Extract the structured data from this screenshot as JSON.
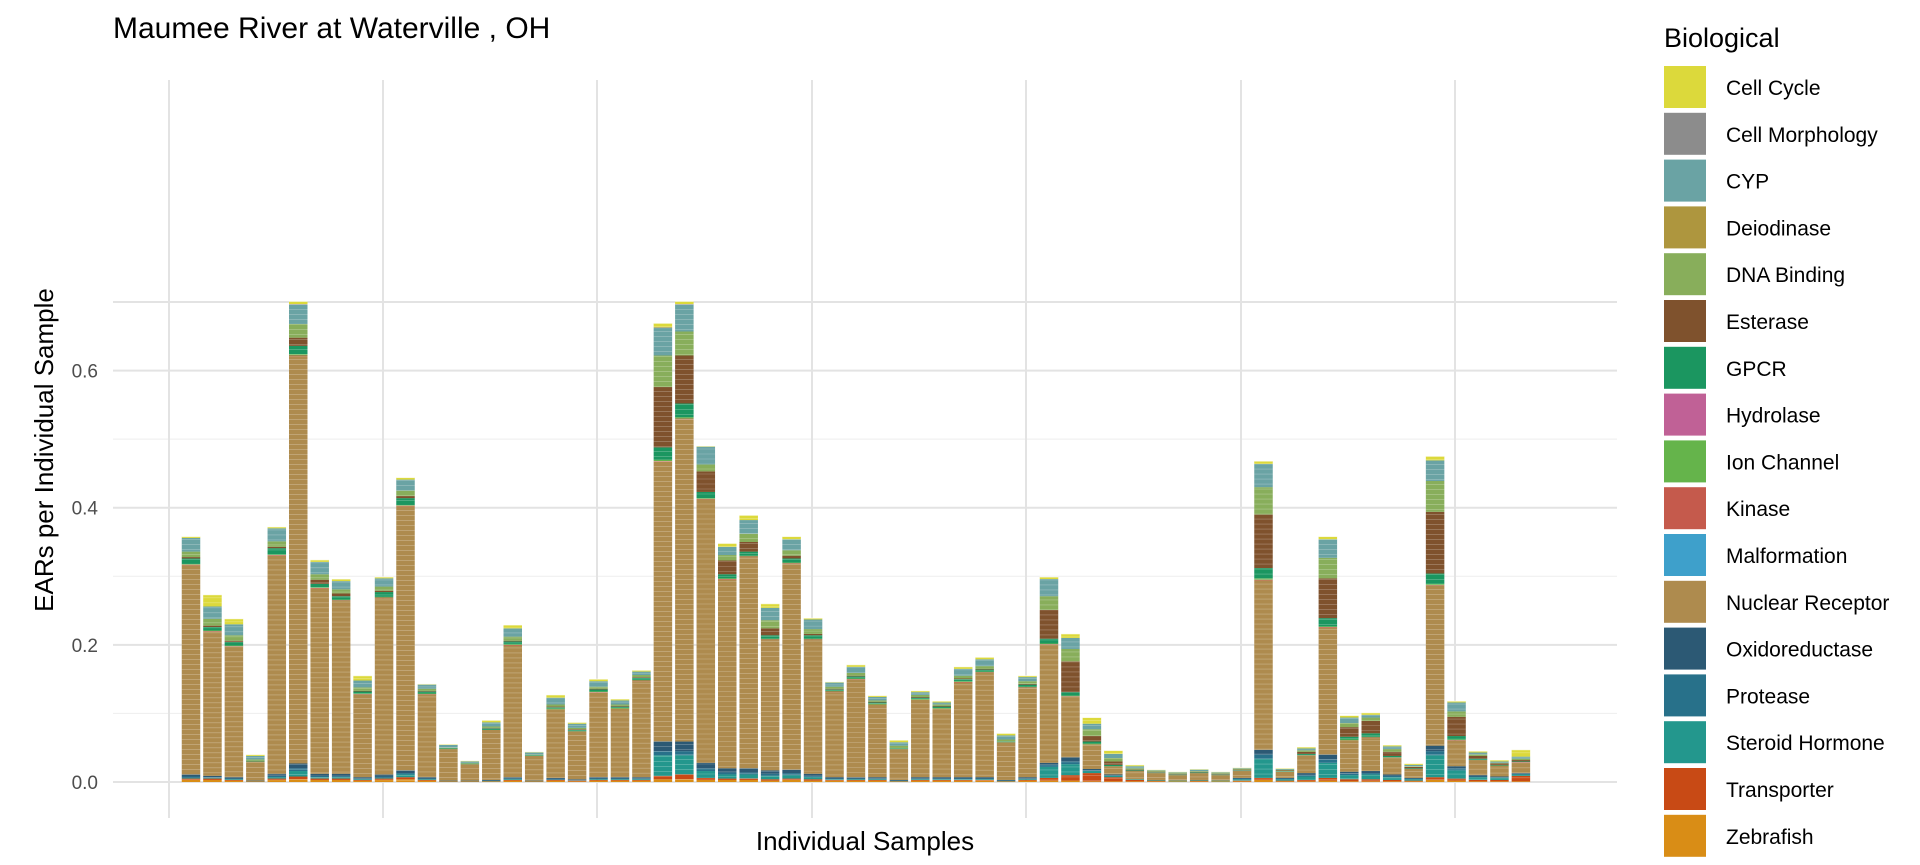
{
  "chart_data": {
    "type": "bar",
    "stacked": true,
    "title": "Maumee River at Waterville , OH",
    "xlabel": "Individual Samples",
    "ylabel": "EARs per Individual Sample",
    "ylim": [
      0,
      0.7
    ],
    "yticks": [
      "0.0",
      "0.2",
      "0.4",
      "0.6"
    ],
    "grid": true,
    "legend": {
      "title": "Biological",
      "position": "right",
      "entries": [
        {
          "name": "Cell Cycle",
          "color": "#dcd93b"
        },
        {
          "name": "Cell Morphology",
          "color": "#8c8c8c"
        },
        {
          "name": "CYP",
          "color": "#6aa3a4"
        },
        {
          "name": "Deiodinase",
          "color": "#ae963e"
        },
        {
          "name": "DNA Binding",
          "color": "#88ae5b"
        },
        {
          "name": "Esterase",
          "color": "#7f522d"
        },
        {
          "name": "GPCR",
          "color": "#1b9660"
        },
        {
          "name": "Hydrolase",
          "color": "#c06196"
        },
        {
          "name": "Ion Channel",
          "color": "#65b44b"
        },
        {
          "name": "Kinase",
          "color": "#c55a4c"
        },
        {
          "name": "Malformation",
          "color": "#3ea0cb"
        },
        {
          "name": "Nuclear Receptor",
          "color": "#ae8b4e"
        },
        {
          "name": "Oxidoreductase",
          "color": "#2c5974"
        },
        {
          "name": "Protease",
          "color": "#28718a"
        },
        {
          "name": "Steroid Hormone",
          "color": "#23978d"
        },
        {
          "name": "Transporter",
          "color": "#c84a15"
        },
        {
          "name": "Zebrafish",
          "color": "#d98d16"
        }
      ]
    },
    "totals": [
      0.355,
      0.262,
      0.237,
      0.041,
      0.37,
      0.7,
      0.323,
      0.295,
      0.155,
      0.298,
      0.444,
      0.143,
      0.055,
      0.03,
      0.09,
      0.228,
      0.044,
      0.127,
      0.087,
      0.15,
      0.12,
      0.163,
      0.664,
      0.7,
      0.49,
      0.345,
      0.39,
      0.258,
      0.357,
      0.24,
      0.145,
      0.17,
      0.123,
      0.06,
      0.132,
      0.116,
      0.166,
      0.177,
      0.07,
      0.154,
      0.298,
      0.215,
      0.089,
      0.043,
      0.024,
      0.018,
      0.014,
      0.018,
      0.014,
      0.02,
      0.467,
      0.018,
      0.047,
      0.358,
      0.096,
      0.1,
      0.054,
      0.024,
      0.476,
      0.118,
      0.043,
      0.03,
      0.038
    ],
    "series": [
      {
        "name": "Zebrafish",
        "values": [
          0.003,
          0.003,
          0.002,
          0.001,
          0.003,
          0.004,
          0.003,
          0.003,
          0.002,
          0.003,
          0.004,
          0.002,
          0.001,
          0.001,
          0.001,
          0.002,
          0.001,
          0.002,
          0.001,
          0.002,
          0.002,
          0.002,
          0.004,
          0.004,
          0.003,
          0.003,
          0.003,
          0.002,
          0.003,
          0.002,
          0.002,
          0.002,
          0.002,
          0.001,
          0.002,
          0.002,
          0.002,
          0.002,
          0.001,
          0.002,
          0.002,
          0.002,
          0.001,
          0.001,
          0.001,
          0.001,
          0.001,
          0.001,
          0.001,
          0.001,
          0.003,
          0.001,
          0.001,
          0.002,
          0.001,
          0.001,
          0.001,
          0.001,
          0.003,
          0.002,
          0.001,
          0.001,
          0.001
        ]
      },
      {
        "name": "Transporter",
        "values": [
          0.002,
          0.002,
          0.001,
          0.0,
          0.002,
          0.004,
          0.002,
          0.002,
          0.001,
          0.002,
          0.003,
          0.001,
          0.0,
          0.0,
          0.0,
          0.001,
          0.0,
          0.001,
          0.001,
          0.001,
          0.001,
          0.001,
          0.005,
          0.007,
          0.003,
          0.002,
          0.002,
          0.002,
          0.002,
          0.002,
          0.001,
          0.001,
          0.001,
          0.0,
          0.001,
          0.001,
          0.001,
          0.001,
          0.0,
          0.001,
          0.004,
          0.008,
          0.012,
          0.006,
          0.002,
          0.001,
          0.0,
          0.001,
          0.0,
          0.001,
          0.003,
          0.001,
          0.002,
          0.004,
          0.003,
          0.003,
          0.002,
          0.001,
          0.004,
          0.003,
          0.002,
          0.002,
          0.008
        ]
      },
      {
        "name": "Steroid Hormone",
        "values": [
          0.001,
          0.001,
          0.001,
          0.0,
          0.002,
          0.008,
          0.002,
          0.002,
          0.001,
          0.001,
          0.004,
          0.001,
          0.0,
          0.0,
          0.0,
          0.001,
          0.0,
          0.0,
          0.0,
          0.001,
          0.001,
          0.001,
          0.03,
          0.028,
          0.01,
          0.006,
          0.006,
          0.005,
          0.005,
          0.003,
          0.001,
          0.001,
          0.001,
          0.0,
          0.001,
          0.001,
          0.001,
          0.001,
          0.0,
          0.001,
          0.016,
          0.016,
          0.003,
          0.002,
          0.001,
          0.001,
          0.001,
          0.001,
          0.001,
          0.002,
          0.028,
          0.002,
          0.005,
          0.022,
          0.006,
          0.007,
          0.004,
          0.002,
          0.032,
          0.012,
          0.004,
          0.003,
          0.002
        ]
      },
      {
        "name": "Protease",
        "values": [
          0.002,
          0.001,
          0.001,
          0.0,
          0.002,
          0.004,
          0.002,
          0.002,
          0.001,
          0.002,
          0.002,
          0.001,
          0.0,
          0.0,
          0.001,
          0.001,
          0.0,
          0.001,
          0.001,
          0.001,
          0.001,
          0.001,
          0.006,
          0.006,
          0.004,
          0.003,
          0.003,
          0.003,
          0.003,
          0.002,
          0.001,
          0.001,
          0.001,
          0.001,
          0.001,
          0.001,
          0.001,
          0.001,
          0.001,
          0.001,
          0.003,
          0.004,
          0.001,
          0.001,
          0.0,
          0.0,
          0.0,
          0.0,
          0.0,
          0.001,
          0.006,
          0.001,
          0.002,
          0.005,
          0.002,
          0.002,
          0.002,
          0.001,
          0.006,
          0.003,
          0.001,
          0.001,
          0.001
        ]
      },
      {
        "name": "Oxidoreductase",
        "values": [
          0.003,
          0.002,
          0.002,
          0.001,
          0.003,
          0.007,
          0.003,
          0.003,
          0.002,
          0.003,
          0.004,
          0.002,
          0.001,
          0.001,
          0.001,
          0.002,
          0.001,
          0.002,
          0.001,
          0.002,
          0.002,
          0.002,
          0.014,
          0.014,
          0.008,
          0.006,
          0.006,
          0.005,
          0.005,
          0.003,
          0.002,
          0.002,
          0.002,
          0.001,
          0.002,
          0.002,
          0.002,
          0.002,
          0.001,
          0.002,
          0.003,
          0.006,
          0.002,
          0.001,
          0.0,
          0.0,
          0.0,
          0.0,
          0.0,
          0.001,
          0.007,
          0.001,
          0.003,
          0.007,
          0.003,
          0.003,
          0.002,
          0.001,
          0.008,
          0.003,
          0.002,
          0.001,
          0.001
        ]
      },
      {
        "name": "Nuclear Receptor",
        "values": [
          0.305,
          0.21,
          0.19,
          0.028,
          0.318,
          0.594,
          0.27,
          0.252,
          0.12,
          0.257,
          0.385,
          0.12,
          0.046,
          0.024,
          0.073,
          0.192,
          0.036,
          0.1,
          0.07,
          0.123,
          0.1,
          0.14,
          0.408,
          0.47,
          0.384,
          0.275,
          0.308,
          0.19,
          0.3,
          0.195,
          0.124,
          0.142,
          0.106,
          0.045,
          0.113,
          0.1,
          0.138,
          0.152,
          0.055,
          0.13,
          0.172,
          0.088,
          0.036,
          0.012,
          0.012,
          0.01,
          0.008,
          0.01,
          0.008,
          0.01,
          0.247,
          0.009,
          0.026,
          0.185,
          0.046,
          0.048,
          0.025,
          0.013,
          0.233,
          0.037,
          0.022,
          0.016,
          0.015
        ]
      },
      {
        "name": "Kinase",
        "values": [
          0.001,
          0.001,
          0.001,
          0.0,
          0.001,
          0.001,
          0.001,
          0.001,
          0.001,
          0.001,
          0.001,
          0.001,
          0.0,
          0.0,
          0.0,
          0.001,
          0.0,
          0.0,
          0.0,
          0.001,
          0.0,
          0.001,
          0.001,
          0.001,
          0.001,
          0.001,
          0.001,
          0.001,
          0.001,
          0.001,
          0.001,
          0.001,
          0.0,
          0.0,
          0.0,
          0.0,
          0.001,
          0.001,
          0.0,
          0.001,
          0.001,
          0.001,
          0.0,
          0.0,
          0.0,
          0.0,
          0.0,
          0.0,
          0.0,
          0.0,
          0.001,
          0.0,
          0.0,
          0.001,
          0.0,
          0.001,
          0.0,
          0.0,
          0.001,
          0.001,
          0.0,
          0.0,
          0.001
        ]
      },
      {
        "name": "Ion Channel",
        "values": [
          0.001,
          0.001,
          0.001,
          0.0,
          0.001,
          0.002,
          0.001,
          0.001,
          0.001,
          0.001,
          0.001,
          0.001,
          0.0,
          0.0,
          0.0,
          0.001,
          0.0,
          0.001,
          0.0,
          0.001,
          0.001,
          0.001,
          0.002,
          0.002,
          0.001,
          0.001,
          0.001,
          0.001,
          0.001,
          0.001,
          0.001,
          0.001,
          0.001,
          0.0,
          0.001,
          0.001,
          0.001,
          0.001,
          0.0,
          0.001,
          0.001,
          0.001,
          0.001,
          0.0,
          0.0,
          0.0,
          0.0,
          0.0,
          0.0,
          0.0,
          0.002,
          0.0,
          0.0,
          0.001,
          0.001,
          0.001,
          0.0,
          0.0,
          0.002,
          0.001,
          0.0,
          0.0,
          0.0
        ]
      },
      {
        "name": "GPCR",
        "values": [
          0.008,
          0.005,
          0.005,
          0.001,
          0.009,
          0.012,
          0.005,
          0.005,
          0.003,
          0.007,
          0.01,
          0.003,
          0.001,
          0.001,
          0.002,
          0.004,
          0.001,
          0.002,
          0.002,
          0.003,
          0.002,
          0.003,
          0.018,
          0.02,
          0.009,
          0.006,
          0.006,
          0.005,
          0.006,
          0.005,
          0.002,
          0.003,
          0.002,
          0.001,
          0.002,
          0.002,
          0.003,
          0.003,
          0.001,
          0.003,
          0.007,
          0.005,
          0.003,
          0.002,
          0.001,
          0.001,
          0.001,
          0.001,
          0.001,
          0.001,
          0.015,
          0.001,
          0.002,
          0.012,
          0.004,
          0.005,
          0.002,
          0.001,
          0.015,
          0.005,
          0.002,
          0.001,
          0.001
        ]
      },
      {
        "name": "Esterase",
        "values": [
          0.002,
          0.002,
          0.002,
          0.0,
          0.002,
          0.012,
          0.006,
          0.004,
          0.001,
          0.002,
          0.003,
          0.001,
          0.0,
          0.0,
          0.001,
          0.001,
          0.0,
          0.001,
          0.001,
          0.001,
          0.001,
          0.001,
          0.088,
          0.07,
          0.03,
          0.02,
          0.014,
          0.01,
          0.004,
          0.002,
          0.001,
          0.001,
          0.001,
          0.0,
          0.001,
          0.001,
          0.001,
          0.001,
          0.0,
          0.001,
          0.042,
          0.045,
          0.008,
          0.005,
          0.001,
          0.001,
          0.001,
          0.001,
          0.001,
          0.001,
          0.078,
          0.001,
          0.003,
          0.058,
          0.014,
          0.018,
          0.006,
          0.002,
          0.09,
          0.028,
          0.004,
          0.002,
          0.002
        ]
      },
      {
        "name": "DNA Binding",
        "values": [
          0.008,
          0.01,
          0.008,
          0.002,
          0.008,
          0.02,
          0.008,
          0.006,
          0.005,
          0.006,
          0.008,
          0.003,
          0.001,
          0.001,
          0.002,
          0.006,
          0.001,
          0.003,
          0.002,
          0.003,
          0.002,
          0.003,
          0.046,
          0.035,
          0.01,
          0.008,
          0.012,
          0.012,
          0.008,
          0.007,
          0.003,
          0.004,
          0.002,
          0.004,
          0.003,
          0.002,
          0.004,
          0.004,
          0.003,
          0.004,
          0.02,
          0.018,
          0.01,
          0.005,
          0.002,
          0.001,
          0.001,
          0.001,
          0.001,
          0.001,
          0.04,
          0.001,
          0.002,
          0.03,
          0.006,
          0.005,
          0.004,
          0.001,
          0.045,
          0.008,
          0.002,
          0.001,
          0.002
        ]
      },
      {
        "name": "CYP",
        "values": [
          0.02,
          0.018,
          0.016,
          0.005,
          0.019,
          0.028,
          0.018,
          0.012,
          0.01,
          0.012,
          0.016,
          0.006,
          0.004,
          0.002,
          0.006,
          0.012,
          0.003,
          0.01,
          0.006,
          0.008,
          0.006,
          0.005,
          0.04,
          0.039,
          0.026,
          0.012,
          0.02,
          0.018,
          0.016,
          0.014,
          0.006,
          0.009,
          0.005,
          0.005,
          0.004,
          0.003,
          0.01,
          0.01,
          0.006,
          0.006,
          0.025,
          0.016,
          0.008,
          0.006,
          0.003,
          0.001,
          0.001,
          0.002,
          0.001,
          0.001,
          0.034,
          0.001,
          0.003,
          0.027,
          0.008,
          0.004,
          0.004,
          0.002,
          0.03,
          0.013,
          0.003,
          0.002,
          0.003
        ]
      },
      {
        "name": "Cell Morphology",
        "values": [
          0.0,
          0.0,
          0.0,
          0.0,
          0.0,
          0.001,
          0.0,
          0.0,
          0.0,
          0.0,
          0.0,
          0.0,
          0.0,
          0.0,
          0.0,
          0.0,
          0.0,
          0.0,
          0.0,
          0.0,
          0.0,
          0.0,
          0.001,
          0.001,
          0.0,
          0.0,
          0.0,
          0.0,
          0.0,
          0.0,
          0.0,
          0.0,
          0.0,
          0.0,
          0.0,
          0.0,
          0.0,
          0.0,
          0.0,
          0.0,
          0.0,
          0.0,
          0.0,
          0.0,
          0.0,
          0.0,
          0.0,
          0.0,
          0.0,
          0.0,
          0.0,
          0.0,
          0.0,
          0.0,
          0.0,
          0.0,
          0.0,
          0.0,
          0.0,
          0.0,
          0.0,
          0.0,
          0.0
        ]
      },
      {
        "name": "Cell Cycle",
        "values": [
          0.002,
          0.017,
          0.008,
          0.002,
          0.002,
          0.004,
          0.003,
          0.003,
          0.007,
          0.002,
          0.003,
          0.001,
          0.001,
          0.001,
          0.003,
          0.005,
          0.001,
          0.004,
          0.002,
          0.003,
          0.002,
          0.002,
          0.006,
          0.004,
          0.001,
          0.005,
          0.007,
          0.006,
          0.004,
          0.002,
          0.001,
          0.003,
          0.002,
          0.003,
          0.002,
          0.002,
          0.003,
          0.003,
          0.003,
          0.002,
          0.003,
          0.006,
          0.009,
          0.005,
          0.002,
          0.001,
          0.001,
          0.001,
          0.001,
          0.001,
          0.004,
          0.001,
          0.002,
          0.004,
          0.003,
          0.003,
          0.002,
          0.002,
          0.006,
          0.002,
          0.002,
          0.002,
          0.01
        ]
      }
    ]
  }
}
